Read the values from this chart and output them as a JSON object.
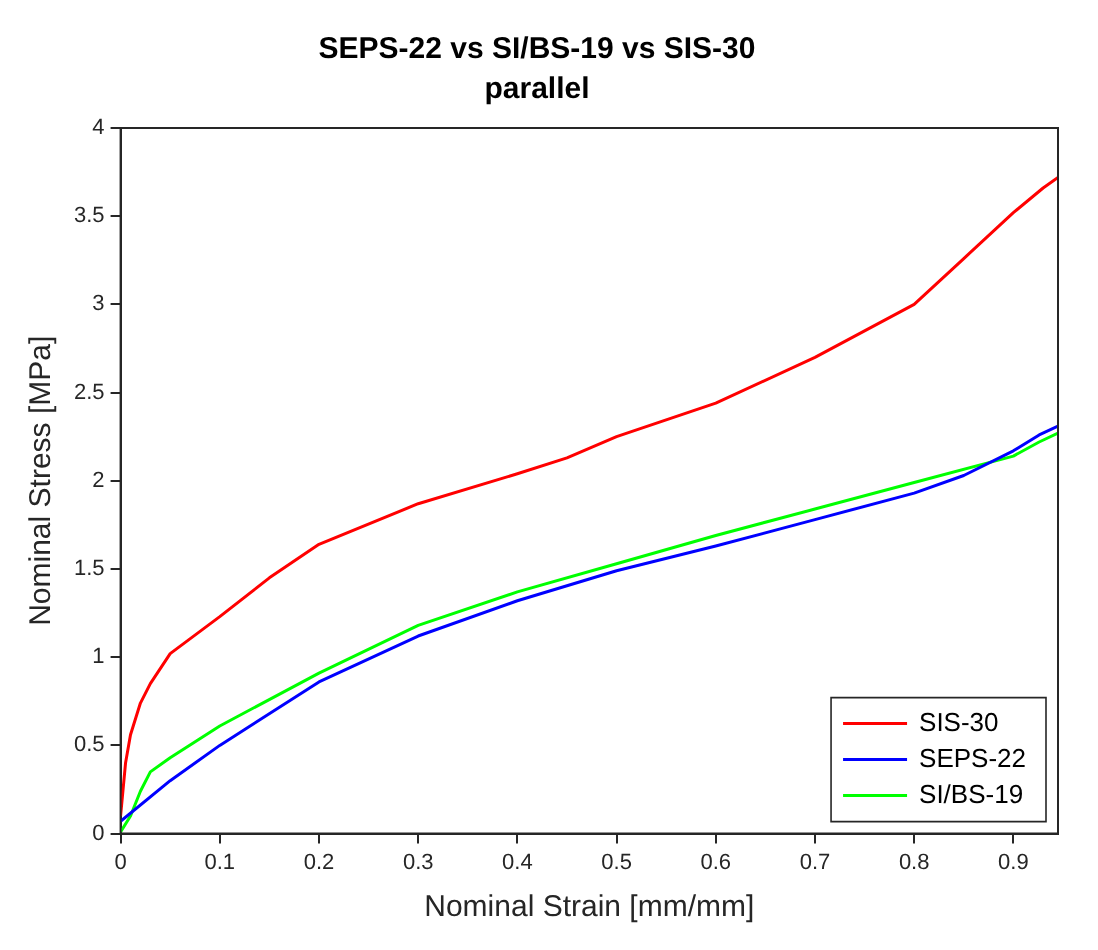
{
  "chart_data": {
    "type": "line",
    "title": "SEPS-22 vs SI/BS-19 vs SIS-30",
    "subtitle": "parallel",
    "xlabel": "Nominal Strain [mm/mm]",
    "ylabel": "Nominal Stress [MPa]",
    "xlim": [
      0,
      0.945
    ],
    "xticks": [
      0,
      0.1,
      0.2,
      0.3,
      0.4,
      0.5,
      0.6,
      0.7,
      0.8,
      0.9
    ],
    "ylim": [
      0,
      4
    ],
    "yticks": [
      0,
      0.5,
      1,
      1.5,
      2,
      2.5,
      3,
      3.5,
      4
    ],
    "grid": false,
    "legend": "bottom right",
    "marker": "none",
    "line_style": "solid",
    "series": [
      {
        "name": "SIS-30",
        "color": "#ff0000",
        "x": [
          0,
          0.005,
          0.01,
          0.02,
          0.03,
          0.05,
          0.1,
          0.15,
          0.2,
          0.3,
          0.4,
          0.45,
          0.5,
          0.6,
          0.7,
          0.8,
          0.85,
          0.9,
          0.93,
          0.945
        ],
        "values": [
          0.1,
          0.4,
          0.56,
          0.74,
          0.85,
          1.02,
          1.23,
          1.45,
          1.64,
          1.87,
          2.04,
          2.13,
          2.25,
          2.44,
          2.7,
          3.0,
          3.26,
          3.52,
          3.66,
          3.72
        ]
      },
      {
        "name": "SEPS-22",
        "color": "#0000ff",
        "x": [
          0,
          0.05,
          0.1,
          0.2,
          0.3,
          0.4,
          0.5,
          0.6,
          0.7,
          0.8,
          0.85,
          0.9,
          0.926,
          0.945
        ],
        "values": [
          0.07,
          0.3,
          0.5,
          0.86,
          1.12,
          1.32,
          1.49,
          1.63,
          1.78,
          1.93,
          2.03,
          2.17,
          2.26,
          2.31
        ]
      },
      {
        "name": "SI/BS-19",
        "color": "#00ff00",
        "x": [
          0,
          0.01,
          0.02,
          0.03,
          0.05,
          0.1,
          0.2,
          0.3,
          0.4,
          0.5,
          0.6,
          0.7,
          0.8,
          0.9,
          0.926,
          0.945
        ],
        "values": [
          0.01,
          0.1,
          0.24,
          0.35,
          0.43,
          0.61,
          0.91,
          1.18,
          1.37,
          1.53,
          1.69,
          1.84,
          1.99,
          2.14,
          2.22,
          2.27
        ]
      }
    ]
  }
}
